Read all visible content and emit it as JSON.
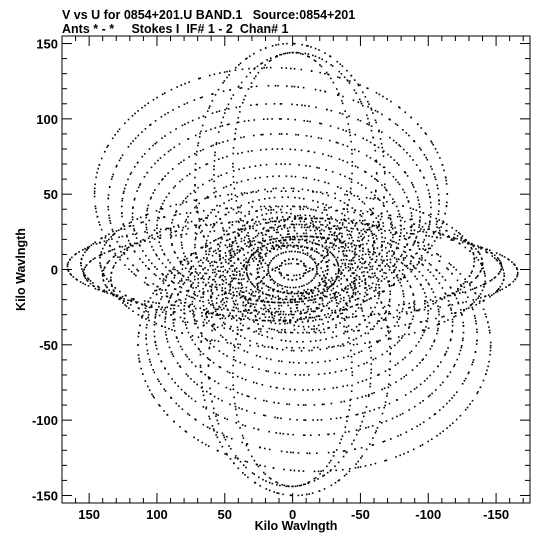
{
  "header": {
    "title_line1": "V vs U for 0854+201.U BAND.1   Source:0854+201",
    "title_line2": "Ants * - *     Stokes I  IF# 1 - 2  Chan# 1"
  },
  "chart_data": {
    "type": "scatter",
    "title": "V vs U for 0854+201.U BAND.1   Source:0854+201",
    "subtitle": "Ants * - *     Stokes I  IF# 1 - 2  Chan# 1",
    "xlabel": "Kilo Wavlngth",
    "ylabel": "Kilo Wavlngth",
    "xlim": [
      170,
      -175
    ],
    "ylim": [
      -155,
      155
    ],
    "x_reversed": true,
    "x_ticks": [
      150,
      100,
      50,
      0,
      -50,
      -100,
      -150
    ],
    "x_tick_labels": [
      "150",
      "100",
      "50",
      "0",
      "-50",
      "-100",
      "-150"
    ],
    "y_ticks": [
      150,
      100,
      50,
      0,
      -50,
      -100,
      -150
    ],
    "y_tick_labels": [
      "150",
      "100",
      "50",
      "0",
      "-50",
      "-100",
      "-150"
    ],
    "grid": false,
    "marker_color": "#000000",
    "series": [
      {
        "description": "uv-coverage tracks (point-symmetric about origin)",
        "tracks": [
          {
            "cu": 0,
            "cv": 0,
            "a": 10,
            "b": 7
          },
          {
            "cu": 0,
            "cv": 0,
            "a": 18,
            "b": 12
          },
          {
            "cu": 0,
            "cv": 0,
            "a": 26,
            "b": 16
          },
          {
            "cu": 0,
            "cv": 0,
            "a": 34,
            "b": 20
          },
          {
            "cu": 4,
            "cv": 10,
            "a": 42,
            "b": 25
          },
          {
            "cu": 4,
            "cv": 12,
            "a": 50,
            "b": 30
          },
          {
            "cu": 6,
            "cv": 14,
            "a": 58,
            "b": 34
          },
          {
            "cu": 6,
            "cv": 16,
            "a": 66,
            "b": 38
          },
          {
            "cu": 8,
            "cv": 20,
            "a": 74,
            "b": 42
          },
          {
            "cu": 8,
            "cv": 24,
            "a": 82,
            "b": 46
          },
          {
            "cu": 10,
            "cv": 28,
            "a": 90,
            "b": 52
          },
          {
            "cu": 10,
            "cv": 32,
            "a": 98,
            "b": 58
          },
          {
            "cu": 12,
            "cv": 36,
            "a": 106,
            "b": 64
          },
          {
            "cu": 12,
            "cv": 40,
            "a": 114,
            "b": 70
          },
          {
            "cu": 14,
            "cv": 44,
            "a": 122,
            "b": 78
          },
          {
            "cu": 16,
            "cv": 50,
            "a": 130,
            "b": 84
          },
          {
            "cu": 8,
            "cv": 4,
            "a": 148,
            "b": 38
          },
          {
            "cu": 6,
            "cv": 2,
            "a": 160,
            "b": 30
          },
          {
            "cu": 4,
            "cv": 6,
            "a": 138,
            "b": 46
          },
          {
            "cu": 2,
            "cv": 60,
            "a": 70,
            "b": 90
          },
          {
            "cu": -2,
            "cv": 64,
            "a": 60,
            "b": 80
          },
          {
            "cu": 0,
            "cv": 70,
            "a": 44,
            "b": 74
          },
          {
            "cu": 10,
            "cv": 8,
            "a": 36,
            "b": 30
          },
          {
            "cu": -8,
            "cv": 10,
            "a": 32,
            "b": 26
          }
        ]
      }
    ]
  }
}
